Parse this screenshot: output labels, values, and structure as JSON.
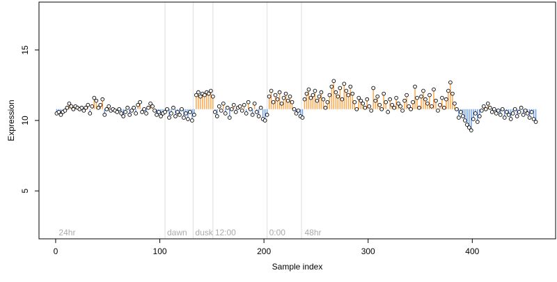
{
  "chart_data": {
    "type": "scatter",
    "title": "",
    "xlabel": "Sample index",
    "ylabel": "Expression",
    "xlim": [
      -16,
      480
    ],
    "ylim": [
      1.6,
      18.4
    ],
    "x_ticks": [
      0,
      100,
      200,
      300,
      400
    ],
    "y_ticks": [
      5,
      10,
      15
    ],
    "baseline": 10.8,
    "grid": false,
    "legend": "none",
    "colors": {
      "up": "#ffa64d",
      "down": "#6d9eeb",
      "point_fill": "#ffffff",
      "point_stroke": "#000000",
      "vline": "#dddddd",
      "label": "#aaaaaa"
    },
    "annotations": [
      {
        "x": 3,
        "label": "24hr"
      },
      {
        "x": 107,
        "label": "dawn"
      },
      {
        "x": 134,
        "label": "dusk"
      },
      {
        "x": 153,
        "label": "12:00"
      },
      {
        "x": 205,
        "label": "0:00"
      },
      {
        "x": 239,
        "label": "48hr"
      }
    ],
    "vlines": [
      105,
      132,
      151,
      203,
      236
    ],
    "points": [
      [
        1,
        10.5
      ],
      [
        3,
        10.6
      ],
      [
        5,
        10.4
      ],
      [
        7,
        10.6
      ],
      [
        9,
        10.7
      ],
      [
        11,
        10.9
      ],
      [
        13,
        11.2
      ],
      [
        15,
        11.0
      ],
      [
        17,
        10.8
      ],
      [
        19,
        11.0
      ],
      [
        21,
        10.9
      ],
      [
        23,
        10.8
      ],
      [
        25,
        10.9
      ],
      [
        27,
        10.7
      ],
      [
        29,
        10.9
      ],
      [
        31,
        11.1
      ],
      [
        33,
        10.5
      ],
      [
        35,
        11.0
      ],
      [
        37,
        11.6
      ],
      [
        39,
        11.4
      ],
      [
        41,
        10.9
      ],
      [
        43,
        11.1
      ],
      [
        45,
        11.5
      ],
      [
        47,
        10.4
      ],
      [
        49,
        10.8
      ],
      [
        51,
        11.0
      ],
      [
        53,
        10.7
      ],
      [
        55,
        10.8
      ],
      [
        57,
        10.7
      ],
      [
        59,
        10.6
      ],
      [
        61,
        10.8
      ],
      [
        63,
        10.5
      ],
      [
        65,
        10.3
      ],
      [
        67,
        10.6
      ],
      [
        69,
        10.9
      ],
      [
        71,
        10.4
      ],
      [
        73,
        10.7
      ],
      [
        75,
        10.9
      ],
      [
        77,
        10.5
      ],
      [
        79,
        11.1
      ],
      [
        81,
        11.3
      ],
      [
        83,
        10.6
      ],
      [
        85,
        10.8
      ],
      [
        87,
        10.5
      ],
      [
        89,
        10.9
      ],
      [
        91,
        11.2
      ],
      [
        93,
        11.0
      ],
      [
        95,
        10.7
      ],
      [
        97,
        10.4
      ],
      [
        99,
        10.6
      ],
      [
        101,
        10.3
      ],
      [
        103,
        10.5
      ],
      [
        105,
        10.6
      ],
      [
        107,
        10.8
      ],
      [
        109,
        10.2
      ],
      [
        111,
        10.5
      ],
      [
        113,
        10.9
      ],
      [
        115,
        10.3
      ],
      [
        117,
        10.6
      ],
      [
        119,
        10.4
      ],
      [
        121,
        10.8
      ],
      [
        123,
        10.2
      ],
      [
        125,
        10.5
      ],
      [
        127,
        10.1
      ],
      [
        129,
        10.6
      ],
      [
        131,
        10.0
      ],
      [
        133,
        10.4
      ],
      [
        135,
        11.8
      ],
      [
        137,
        12.0
      ],
      [
        139,
        11.7
      ],
      [
        141,
        11.9
      ],
      [
        143,
        11.8
      ],
      [
        145,
        12.0
      ],
      [
        147,
        11.9
      ],
      [
        149,
        12.1
      ],
      [
        151,
        11.7
      ],
      [
        153,
        10.6
      ],
      [
        155,
        10.3
      ],
      [
        157,
        11.0
      ],
      [
        159,
        10.7
      ],
      [
        161,
        11.2
      ],
      [
        163,
        10.5
      ],
      [
        165,
        10.9
      ],
      [
        167,
        10.2
      ],
      [
        169,
        10.8
      ],
      [
        171,
        11.1
      ],
      [
        173,
        10.6
      ],
      [
        175,
        10.9
      ],
      [
        177,
        11.0
      ],
      [
        179,
        10.7
      ],
      [
        181,
        11.1
      ],
      [
        183,
        10.5
      ],
      [
        185,
        11.3
      ],
      [
        187,
        10.8
      ],
      [
        189,
        10.4
      ],
      [
        191,
        11.2
      ],
      [
        193,
        10.6
      ],
      [
        195,
        10.3
      ],
      [
        197,
        10.9
      ],
      [
        199,
        10.1
      ],
      [
        201,
        10.0
      ],
      [
        203,
        10.4
      ],
      [
        205,
        11.7
      ],
      [
        207,
        12.1
      ],
      [
        209,
        11.3
      ],
      [
        211,
        11.8
      ],
      [
        213,
        11.5
      ],
      [
        215,
        12.0
      ],
      [
        217,
        11.2
      ],
      [
        219,
        11.6
      ],
      [
        221,
        11.9
      ],
      [
        223,
        11.4
      ],
      [
        225,
        11.7
      ],
      [
        227,
        11.3
      ],
      [
        229,
        10.8
      ],
      [
        231,
        10.5
      ],
      [
        233,
        10.7
      ],
      [
        235,
        10.3
      ],
      [
        237,
        10.2
      ],
      [
        239,
        11.5
      ],
      [
        241,
        11.9
      ],
      [
        243,
        12.2
      ],
      [
        245,
        11.6
      ],
      [
        247,
        11.8
      ],
      [
        249,
        12.1
      ],
      [
        251,
        11.4
      ],
      [
        253,
        11.7
      ],
      [
        255,
        12.0
      ],
      [
        257,
        11.5
      ],
      [
        259,
        10.9
      ],
      [
        261,
        11.3
      ],
      [
        263,
        11.8
      ],
      [
        265,
        12.4
      ],
      [
        267,
        12.8
      ],
      [
        269,
        12.0
      ],
      [
        271,
        11.7
      ],
      [
        273,
        12.3
      ],
      [
        275,
        11.5
      ],
      [
        277,
        12.6
      ],
      [
        279,
        12.1
      ],
      [
        281,
        11.8
      ],
      [
        283,
        12.4
      ],
      [
        285,
        11.9
      ],
      [
        287,
        11.3
      ],
      [
        289,
        10.8
      ],
      [
        291,
        11.6
      ],
      [
        293,
        11.4
      ],
      [
        295,
        11.2
      ],
      [
        297,
        10.9
      ],
      [
        299,
        11.5
      ],
      [
        301,
        11.0
      ],
      [
        303,
        10.7
      ],
      [
        305,
        12.3
      ],
      [
        307,
        11.4
      ],
      [
        309,
        11.7
      ],
      [
        311,
        11.1
      ],
      [
        313,
        10.8
      ],
      [
        315,
        11.9
      ],
      [
        317,
        11.3
      ],
      [
        319,
        10.6
      ],
      [
        321,
        11.5
      ],
      [
        323,
        11.1
      ],
      [
        325,
        10.9
      ],
      [
        327,
        11.6
      ],
      [
        329,
        11.2
      ],
      [
        331,
        11.0
      ],
      [
        333,
        10.7
      ],
      [
        335,
        11.4
      ],
      [
        337,
        11.8
      ],
      [
        339,
        11.0
      ],
      [
        341,
        10.8
      ],
      [
        343,
        11.3
      ],
      [
        345,
        12.4
      ],
      [
        347,
        11.6
      ],
      [
        349,
        10.9
      ],
      [
        351,
        11.7
      ],
      [
        353,
        12.1
      ],
      [
        355,
        11.5
      ],
      [
        357,
        11.2
      ],
      [
        359,
        11.8
      ],
      [
        361,
        11.0
      ],
      [
        363,
        12.2
      ],
      [
        365,
        11.4
      ],
      [
        367,
        10.7
      ],
      [
        369,
        11.1
      ],
      [
        371,
        11.6
      ],
      [
        373,
        10.9
      ],
      [
        375,
        11.5
      ],
      [
        377,
        12.1
      ],
      [
        379,
        12.7
      ],
      [
        381,
        11.9
      ],
      [
        383,
        11.2
      ],
      [
        385,
        10.8
      ],
      [
        387,
        10.2
      ],
      [
        389,
        10.6
      ],
      [
        391,
        10.3
      ],
      [
        393,
        10.0
      ],
      [
        395,
        9.7
      ],
      [
        397,
        9.5
      ],
      [
        399,
        9.3
      ],
      [
        401,
        10.1
      ],
      [
        403,
        10.5
      ],
      [
        405,
        9.9
      ],
      [
        407,
        10.3
      ],
      [
        409,
        10.7
      ],
      [
        411,
        11.0
      ],
      [
        413,
        10.8
      ],
      [
        415,
        11.2
      ],
      [
        417,
        10.9
      ],
      [
        419,
        10.6
      ],
      [
        421,
        10.8
      ],
      [
        423,
        10.5
      ],
      [
        425,
        10.7
      ],
      [
        427,
        10.4
      ],
      [
        429,
        10.8
      ],
      [
        431,
        10.2
      ],
      [
        433,
        10.6
      ],
      [
        435,
        10.4
      ],
      [
        437,
        10.1
      ],
      [
        439,
        10.5
      ],
      [
        441,
        10.8
      ],
      [
        443,
        10.3
      ],
      [
        445,
        10.6
      ],
      [
        447,
        10.9
      ],
      [
        449,
        10.4
      ],
      [
        451,
        10.7
      ],
      [
        453,
        10.5
      ],
      [
        455,
        10.2
      ],
      [
        457,
        10.6
      ],
      [
        459,
        10.1
      ],
      [
        461,
        9.9
      ]
    ]
  }
}
